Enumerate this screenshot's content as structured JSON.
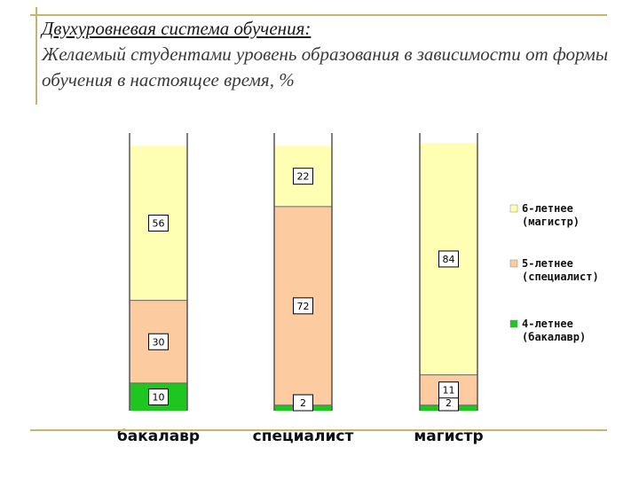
{
  "title": "Двухуровневая система обучения:",
  "subtitle": "Желаемый студентами уровень образования в зависимости от формы обучения в настоящее время, %",
  "chart_data": {
    "type": "bar",
    "stacked": true,
    "categories": [
      "бакалавр",
      "специалист",
      "магистр"
    ],
    "series": [
      {
        "name": "4-летнее (бакалавр)",
        "values": [
          10,
          2,
          2
        ],
        "color": "#1fc61f"
      },
      {
        "name": "5-летнее (специалист)",
        "values": [
          30,
          72,
          11
        ],
        "color": "#fccca0"
      },
      {
        "name": "6-летнее (магистр)",
        "values": [
          56,
          22,
          84
        ],
        "color": "#ffffb4"
      }
    ],
    "legend_order": [
      2,
      1,
      0
    ],
    "legend_lines": [
      [
        "6-летнее",
        "(магистр)"
      ],
      [
        "5-летнее",
        "(специалист)"
      ],
      [
        "4-летнее",
        "(бакалавр)"
      ]
    ],
    "ylim": [
      0,
      100
    ],
    "legend_position": "right",
    "grid": false
  }
}
